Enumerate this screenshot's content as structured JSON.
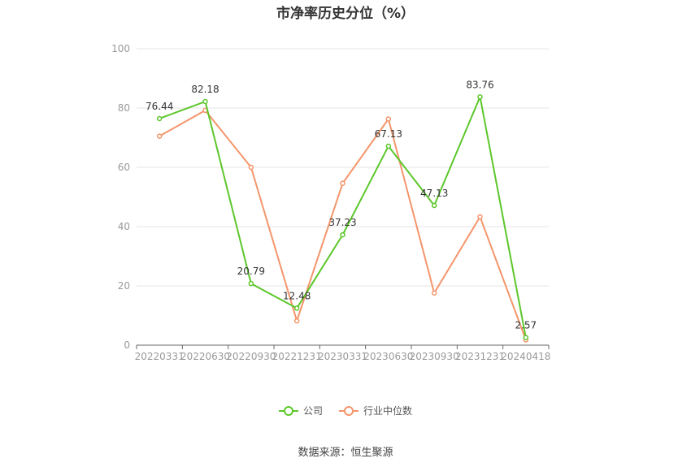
{
  "chart_data": {
    "type": "line",
    "title": "市净率历史分位（%）",
    "categories": [
      "20220331",
      "20220630",
      "20220930",
      "20221231",
      "20230331",
      "20230630",
      "20230930",
      "20231231",
      "20240418"
    ],
    "series": [
      {
        "name": "公司",
        "values": [
          76.44,
          82.18,
          20.79,
          12.48,
          37.23,
          67.13,
          47.13,
          83.76,
          2.57
        ],
        "color": "#5cc72a",
        "labeled": true
      },
      {
        "name": "行业中位数",
        "values": [
          70.5,
          79.2,
          60.0,
          8.2,
          54.6,
          76.3,
          17.6,
          43.3,
          1.8
        ],
        "color": "#f4956b",
        "labeled": false
      }
    ],
    "ylim": [
      0,
      100
    ],
    "yticks": [
      "0",
      "20",
      "40",
      "60",
      "80",
      "100"
    ],
    "grid": true,
    "legend_position": "bottom-center"
  },
  "source": "数据来源：恒生聚源"
}
